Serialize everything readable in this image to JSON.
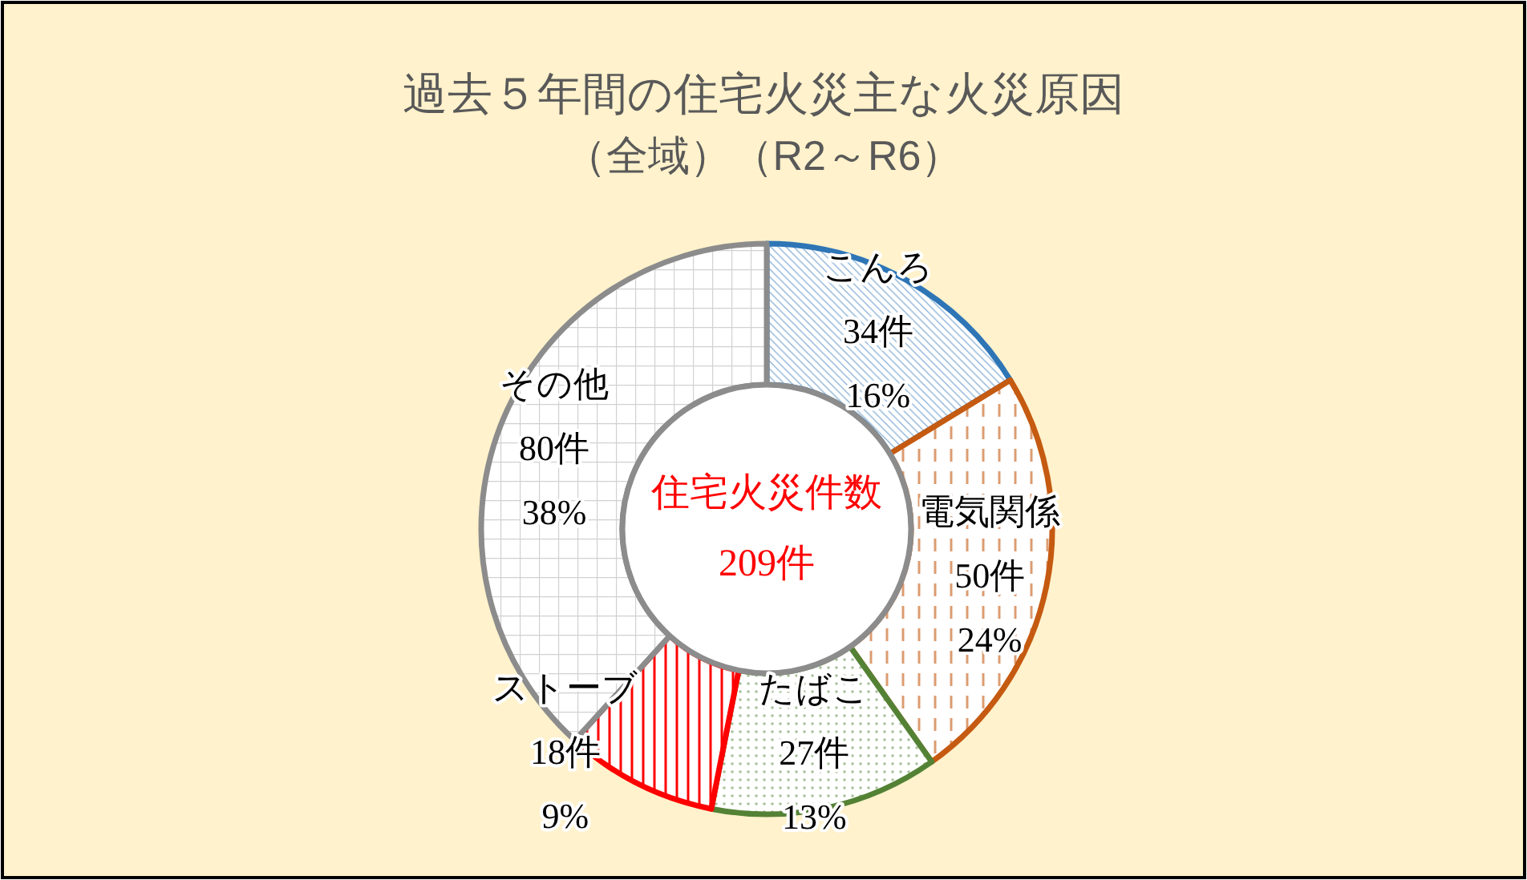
{
  "chart_data": {
    "type": "donut",
    "title": "過去５年間の住宅火災主な火災原因",
    "subtitle": "（全域）（R2～R6）",
    "categories": [
      "こんろ",
      "電気関係",
      "たばこ",
      "ストーブ",
      "その他"
    ],
    "values": [
      34,
      50,
      27,
      18,
      80
    ],
    "colors": [
      "#2e75b6",
      "#c55a11",
      "#548235",
      "#ff0000",
      "#8c8c8c"
    ],
    "value_labels": [
      "34件\n16%",
      "50件\n24%",
      "27件\n13%",
      "18件\n9%",
      "80件\n38%"
    ],
    "annotations": [
      "住宅火災件数",
      "209件"
    ]
  }
}
